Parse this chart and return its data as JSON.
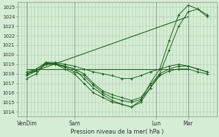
{
  "xlabel": "Pression niveau de la mer( hPa )",
  "ylim": [
    1013.5,
    1025.5
  ],
  "yticks": [
    1014,
    1015,
    1016,
    1017,
    1018,
    1019,
    1020,
    1021,
    1022,
    1023,
    1024,
    1025
  ],
  "bg_color": "#d4edd4",
  "grid_color": "#b0ccb0",
  "line_color": "#1a5c1a",
  "x_tick_labels": [
    "VenDim",
    "Sam",
    "Lun",
    "Mar"
  ],
  "x_tick_positions": [
    0.05,
    0.3,
    0.73,
    0.9
  ],
  "series": [
    {
      "x": [
        0.05,
        0.1,
        0.15,
        0.2,
        0.25,
        0.3,
        0.35,
        0.4,
        0.45,
        0.5,
        0.55,
        0.6,
        0.65,
        0.7,
        0.75,
        0.8,
        0.85,
        0.9,
        0.95,
        1.0
      ],
      "y": [
        1017.8,
        1018.3,
        1019.0,
        1019.0,
        1018.8,
        1018.5,
        1017.5,
        1016.5,
        1015.8,
        1015.2,
        1014.8,
        1014.5,
        1015.0,
        1016.5,
        1018.0,
        1020.5,
        1023.0,
        1024.5,
        1024.8,
        1024.2
      ]
    },
    {
      "x": [
        0.05,
        0.1,
        0.15,
        0.2,
        0.25,
        0.3,
        0.35,
        0.4,
        0.45,
        0.5,
        0.55,
        0.6,
        0.65,
        0.7,
        0.75,
        0.8,
        0.85,
        0.9,
        0.95,
        1.0
      ],
      "y": [
        1018.0,
        1018.5,
        1019.2,
        1019.0,
        1018.5,
        1018.0,
        1017.0,
        1016.0,
        1015.5,
        1015.0,
        1014.8,
        1014.5,
        1015.2,
        1017.0,
        1018.5,
        1021.5,
        1024.2,
        1025.2,
        1024.8,
        1024.0
      ]
    },
    {
      "x": [
        0.05,
        0.1,
        0.15,
        0.2,
        0.25,
        0.3,
        0.35,
        0.4,
        0.45,
        0.5,
        0.55,
        0.6,
        0.65,
        0.7,
        0.75,
        0.8,
        0.85,
        0.9,
        0.95,
        1.0
      ],
      "y": [
        1018.2,
        1018.5,
        1019.1,
        1019.1,
        1018.8,
        1018.5,
        1018.0,
        1017.0,
        1016.2,
        1015.8,
        1015.5,
        1015.2,
        1015.5,
        1016.8,
        1018.0,
        1018.5,
        1018.8,
        1018.8,
        1018.5,
        1018.2
      ]
    },
    {
      "x": [
        0.05,
        0.1,
        0.15,
        0.2,
        0.25,
        0.3,
        0.35,
        0.4,
        0.45,
        0.5,
        0.55,
        0.6,
        0.65,
        0.7,
        0.75,
        0.8,
        0.85,
        0.9,
        0.95,
        1.0
      ],
      "y": [
        1018.0,
        1018.3,
        1019.0,
        1019.0,
        1018.7,
        1018.2,
        1017.8,
        1016.8,
        1016.0,
        1015.5,
        1015.2,
        1015.0,
        1015.3,
        1016.5,
        1017.8,
        1018.3,
        1018.5,
        1018.5,
        1018.2,
        1018.0
      ]
    },
    {
      "x": [
        0.05,
        0.1,
        0.15,
        0.2,
        0.25,
        0.3,
        0.35,
        0.4,
        0.45,
        0.5,
        0.55,
        0.6,
        0.65,
        0.7,
        0.75,
        0.8,
        0.85,
        0.9,
        0.95,
        1.0
      ],
      "y": [
        1017.5,
        1018.0,
        1019.2,
        1019.2,
        1019.0,
        1018.8,
        1018.5,
        1018.2,
        1018.0,
        1017.8,
        1017.5,
        1017.5,
        1017.8,
        1018.2,
        1018.5,
        1018.8,
        1019.0,
        1018.8,
        1018.5,
        1018.2
      ]
    },
    {
      "x": [
        0.05,
        0.9
      ],
      "y": [
        1018.0,
        1024.0
      ]
    },
    {
      "x": [
        0.05,
        0.9
      ],
      "y": [
        1018.5,
        1018.5
      ]
    }
  ]
}
